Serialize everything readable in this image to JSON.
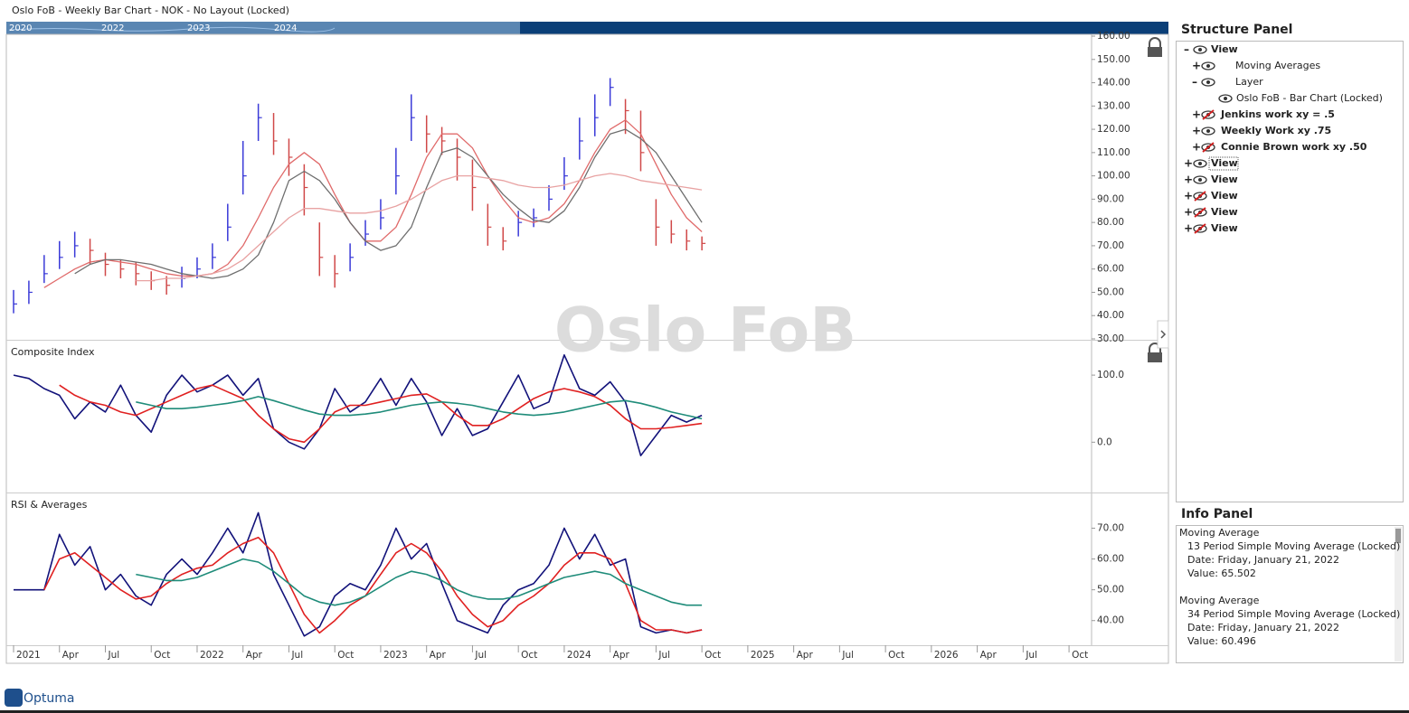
{
  "window_title": "Oslo FoB - Weekly Bar Chart - NOK - No Layout (Locked)",
  "navigator": {
    "labels": [
      "2020",
      "2022",
      "2023",
      "2024"
    ]
  },
  "watermark": "Oslo FoB",
  "chart_data": [
    {
      "type": "ohlc",
      "x": [
        "2021-01",
        "2021-02",
        "2021-03",
        "2021-04",
        "2021-05",
        "2021-06",
        "2021-07",
        "2021-08",
        "2021-09",
        "2021-10",
        "2021-11",
        "2021-12",
        "2022-01",
        "2022-02",
        "2022-03",
        "2022-04",
        "2022-05",
        "2022-06",
        "2022-07",
        "2022-08",
        "2022-09",
        "2022-10",
        "2022-11",
        "2022-12",
        "2023-01",
        "2023-02",
        "2023-03",
        "2023-04",
        "2023-05",
        "2023-06",
        "2023-07",
        "2023-08",
        "2023-09",
        "2023-10",
        "2023-11",
        "2023-12",
        "2024-01",
        "2024-02",
        "2024-03",
        "2024-04",
        "2024-05",
        "2024-06",
        "2024-07",
        "2024-08",
        "2024-09",
        "2024-10"
      ],
      "high": [
        51,
        55,
        66,
        72,
        76,
        73,
        67,
        64,
        63,
        59,
        57,
        61,
        65,
        71,
        88,
        115,
        131,
        127,
        116,
        105,
        80,
        66,
        71,
        81,
        90,
        112,
        135,
        126,
        121,
        116,
        107,
        88,
        78,
        85,
        86,
        96,
        108,
        125,
        135,
        142,
        133,
        128,
        90,
        81,
        77,
        74
      ],
      "low": [
        41,
        45,
        54,
        60,
        65,
        62,
        57,
        56,
        53,
        51,
        49,
        52,
        56,
        60,
        72,
        92,
        115,
        109,
        100,
        83,
        57,
        52,
        59,
        70,
        77,
        92,
        115,
        110,
        109,
        98,
        85,
        70,
        68,
        74,
        78,
        85,
        94,
        107,
        117,
        130,
        118,
        102,
        70,
        71,
        68,
        68
      ],
      "close": [
        45,
        50,
        58,
        65,
        70,
        68,
        62,
        60,
        58,
        55,
        53,
        56,
        60,
        65,
        78,
        100,
        125,
        115,
        108,
        95,
        65,
        58,
        65,
        75,
        82,
        100,
        125,
        118,
        115,
        108,
        95,
        78,
        72,
        80,
        82,
        90,
        100,
        115,
        125,
        138,
        128,
        110,
        78,
        75,
        72,
        71
      ],
      "up_color": "#3a3ad8",
      "down_color": "#d04848",
      "series": [
        {
          "color": "#e06a6a",
          "values": [
            null,
            null,
            52,
            56,
            60,
            63,
            64,
            63,
            62,
            60,
            58,
            57,
            57,
            58,
            62,
            70,
            82,
            95,
            105,
            110,
            105,
            92,
            80,
            72,
            72,
            78,
            92,
            108,
            118,
            118,
            112,
            100,
            90,
            82,
            80,
            82,
            88,
            98,
            110,
            120,
            124,
            118,
            105,
            92,
            82,
            76
          ]
        },
        {
          "color": "#6e6e6e",
          "values": [
            null,
            null,
            null,
            null,
            58,
            62,
            64,
            64,
            63,
            62,
            60,
            58,
            57,
            56,
            57,
            60,
            66,
            80,
            98,
            102,
            98,
            90,
            80,
            72,
            68,
            70,
            78,
            95,
            110,
            112,
            108,
            100,
            92,
            86,
            81,
            80,
            85,
            95,
            108,
            118,
            120,
            116,
            110,
            100,
            90,
            80
          ]
        },
        {
          "color": "#e8a2a2",
          "values": [
            null,
            null,
            null,
            null,
            null,
            null,
            null,
            null,
            55,
            55,
            56,
            56,
            57,
            58,
            60,
            64,
            70,
            76,
            82,
            86,
            86,
            85,
            84,
            84,
            85,
            87,
            90,
            94,
            98,
            100,
            100,
            99,
            98,
            96,
            95,
            95,
            96,
            98,
            100,
            101,
            100,
            98,
            97,
            96,
            95,
            94
          ]
        }
      ],
      "xlim": [
        "2021-01",
        "2026-11"
      ],
      "ylim": [
        30,
        160
      ],
      "yticks": [
        {
          "value": 30,
          "label": "30.00"
        },
        {
          "value": 40,
          "label": "40.00"
        },
        {
          "value": 50,
          "label": "50.00"
        },
        {
          "value": 60,
          "label": "60.00"
        },
        {
          "value": 70,
          "label": "70.00"
        },
        {
          "value": 80,
          "label": "80.00"
        },
        {
          "value": 90,
          "label": "90.00"
        },
        {
          "value": 100,
          "label": "100.00"
        },
        {
          "value": 110,
          "label": "110.00"
        },
        {
          "value": 120,
          "label": "120.00"
        },
        {
          "value": 130,
          "label": "130.00"
        },
        {
          "value": 140,
          "label": "140.00"
        },
        {
          "value": 150,
          "label": "150.00"
        },
        {
          "value": 160,
          "label": "160.00"
        }
      ]
    },
    {
      "type": "line",
      "title": "Composite Index",
      "x": [
        "2021-01",
        "2021-02",
        "2021-03",
        "2021-04",
        "2021-05",
        "2021-06",
        "2021-07",
        "2021-08",
        "2021-09",
        "2021-10",
        "2021-11",
        "2021-12",
        "2022-01",
        "2022-02",
        "2022-03",
        "2022-04",
        "2022-05",
        "2022-06",
        "2022-07",
        "2022-08",
        "2022-09",
        "2022-10",
        "2022-11",
        "2022-12",
        "2023-01",
        "2023-02",
        "2023-03",
        "2023-04",
        "2023-05",
        "2023-06",
        "2023-07",
        "2023-08",
        "2023-09",
        "2023-10",
        "2023-11",
        "2023-12",
        "2024-01",
        "2024-02",
        "2024-03",
        "2024-04",
        "2024-05",
        "2024-06",
        "2024-07",
        "2024-08",
        "2024-09",
        "2024-10"
      ],
      "series": [
        {
          "color": "#12127a",
          "values": [
            100,
            95,
            80,
            70,
            35,
            60,
            45,
            85,
            40,
            15,
            70,
            100,
            75,
            85,
            100,
            70,
            95,
            20,
            0,
            -10,
            20,
            80,
            45,
            60,
            95,
            55,
            95,
            60,
            10,
            50,
            10,
            20,
            60,
            100,
            50,
            60,
            130,
            80,
            70,
            90,
            60,
            -20,
            10,
            40,
            30,
            40
          ]
        },
        {
          "color": "#e02020",
          "values": [
            null,
            null,
            null,
            85,
            70,
            60,
            55,
            45,
            40,
            50,
            60,
            70,
            80,
            85,
            75,
            65,
            40,
            20,
            5,
            0,
            20,
            45,
            55,
            55,
            60,
            65,
            70,
            72,
            60,
            40,
            25,
            25,
            35,
            50,
            65,
            75,
            80,
            75,
            68,
            55,
            35,
            20,
            20,
            22,
            25,
            28
          ]
        },
        {
          "color": "#1f8c7a",
          "values": [
            null,
            null,
            null,
            null,
            null,
            null,
            null,
            null,
            60,
            55,
            50,
            50,
            52,
            55,
            58,
            62,
            68,
            62,
            55,
            48,
            42,
            40,
            40,
            42,
            45,
            50,
            55,
            58,
            60,
            58,
            55,
            50,
            45,
            42,
            40,
            42,
            45,
            50,
            55,
            60,
            62,
            58,
            52,
            45,
            40,
            35
          ]
        }
      ],
      "xlim": [
        "2021-01",
        "2026-11"
      ],
      "ylim": [
        -75,
        150
      ],
      "yticks": [
        {
          "value": 0,
          "label": "0.0"
        },
        {
          "value": 100,
          "label": "100.0"
        }
      ]
    },
    {
      "type": "line",
      "title": "RSI & Averages",
      "x": [
        "2021-01",
        "2021-02",
        "2021-03",
        "2021-04",
        "2021-05",
        "2021-06",
        "2021-07",
        "2021-08",
        "2021-09",
        "2021-10",
        "2021-11",
        "2021-12",
        "2022-01",
        "2022-02",
        "2022-03",
        "2022-04",
        "2022-05",
        "2022-06",
        "2022-07",
        "2022-08",
        "2022-09",
        "2022-10",
        "2022-11",
        "2022-12",
        "2023-01",
        "2023-02",
        "2023-03",
        "2023-04",
        "2023-05",
        "2023-06",
        "2023-07",
        "2023-08",
        "2023-09",
        "2023-10",
        "2023-11",
        "2023-12",
        "2024-01",
        "2024-02",
        "2024-03",
        "2024-04",
        "2024-05",
        "2024-06",
        "2024-07",
        "2024-08",
        "2024-09",
        "2024-10"
      ],
      "series": [
        {
          "color": "#12127a",
          "values": [
            50,
            50,
            50,
            68,
            58,
            64,
            50,
            55,
            48,
            45,
            55,
            60,
            55,
            62,
            70,
            62,
            75,
            55,
            45,
            35,
            38,
            48,
            52,
            50,
            58,
            70,
            60,
            65,
            52,
            40,
            38,
            36,
            45,
            50,
            52,
            58,
            70,
            60,
            68,
            58,
            60,
            38,
            36,
            37,
            36,
            37
          ]
        },
        {
          "color": "#e02020",
          "values": [
            null,
            null,
            50,
            60,
            62,
            58,
            54,
            50,
            47,
            48,
            52,
            55,
            57,
            58,
            62,
            65,
            67,
            62,
            52,
            42,
            36,
            40,
            45,
            48,
            55,
            62,
            65,
            62,
            56,
            48,
            42,
            38,
            40,
            45,
            48,
            52,
            58,
            62,
            62,
            60,
            52,
            40,
            37,
            37,
            36,
            37
          ]
        },
        {
          "color": "#1f8c7a",
          "values": [
            null,
            null,
            null,
            null,
            null,
            null,
            null,
            null,
            55,
            54,
            53,
            53,
            54,
            56,
            58,
            60,
            59,
            56,
            52,
            48,
            46,
            45,
            46,
            48,
            51,
            54,
            56,
            55,
            53,
            50,
            48,
            47,
            47,
            48,
            50,
            52,
            54,
            55,
            56,
            55,
            52,
            50,
            48,
            46,
            45,
            45
          ]
        }
      ],
      "xlim": [
        "2021-01",
        "2026-11"
      ],
      "ylim": [
        32,
        81
      ],
      "yticks": [
        {
          "value": 40,
          "label": "40.00"
        },
        {
          "value": 50,
          "label": "50.00"
        },
        {
          "value": 60,
          "label": "60.00"
        },
        {
          "value": 70,
          "label": "70.00"
        }
      ],
      "xticks": [
        {
          "value": "2021-01",
          "label": "2021"
        },
        {
          "value": "2021-04",
          "label": "Apr"
        },
        {
          "value": "2021-07",
          "label": "Jul"
        },
        {
          "value": "2021-10",
          "label": "Oct"
        },
        {
          "value": "2022-01",
          "label": "2022"
        },
        {
          "value": "2022-04",
          "label": "Apr"
        },
        {
          "value": "2022-07",
          "label": "Jul"
        },
        {
          "value": "2022-10",
          "label": "Oct"
        },
        {
          "value": "2023-01",
          "label": "2023"
        },
        {
          "value": "2023-04",
          "label": "Apr"
        },
        {
          "value": "2023-07",
          "label": "Jul"
        },
        {
          "value": "2023-10",
          "label": "Oct"
        },
        {
          "value": "2024-01",
          "label": "2024"
        },
        {
          "value": "2024-04",
          "label": "Apr"
        },
        {
          "value": "2024-07",
          "label": "Jul"
        },
        {
          "value": "2024-10",
          "label": "Oct"
        },
        {
          "value": "2025-01",
          "label": "2025"
        },
        {
          "value": "2025-04",
          "label": "Apr"
        },
        {
          "value": "2025-07",
          "label": "Jul"
        },
        {
          "value": "2025-10",
          "label": "Oct"
        },
        {
          "value": "2026-01",
          "label": "2026"
        },
        {
          "value": "2026-04",
          "label": "Apr"
        },
        {
          "value": "2026-07",
          "label": "Jul"
        },
        {
          "value": "2026-10",
          "label": "Oct"
        }
      ]
    }
  ],
  "structure_panel": {
    "title": "Structure Panel",
    "nodes": [
      {
        "sign": "–",
        "label": "View",
        "bold": true,
        "children": [
          {
            "sign": "+",
            "label": "Moving Averages"
          },
          {
            "sign": "–",
            "label": "Layer",
            "children": [
              {
                "label": "Oslo FoB - Bar Chart (Locked)"
              }
            ]
          },
          {
            "sign": "+",
            "label": "Jenkins work xy = .5",
            "bold": true,
            "hidden": true
          },
          {
            "sign": "+",
            "label": "Weekly Work xy .75",
            "bold": true
          },
          {
            "sign": "+",
            "label": "Connie Brown work xy .50",
            "bold": true,
            "hidden": true
          }
        ]
      },
      {
        "sign": "+",
        "label": "View",
        "bold": true,
        "selected": true
      },
      {
        "sign": "+",
        "label": "View",
        "bold": true
      },
      {
        "sign": "+",
        "label": "View",
        "bold": true,
        "hidden": true
      },
      {
        "sign": "+",
        "label": "View",
        "bold": true,
        "hidden": true
      },
      {
        "sign": "+",
        "label": "View",
        "bold": true,
        "hidden": true
      }
    ]
  },
  "info_panel": {
    "title": "Info Panel",
    "entries": [
      {
        "heading": "Moving Average",
        "lines": [
          "13 Period Simple Moving Average (Locked)",
          "Date: Friday, January 21, 2022",
          "Value: 65.502"
        ]
      },
      {
        "heading": "Moving Average",
        "lines": [
          "34 Period Simple Moving Average (Locked)",
          "Date: Friday, January 21, 2022",
          "Value: 60.496"
        ]
      }
    ]
  },
  "logo": "Optuma"
}
